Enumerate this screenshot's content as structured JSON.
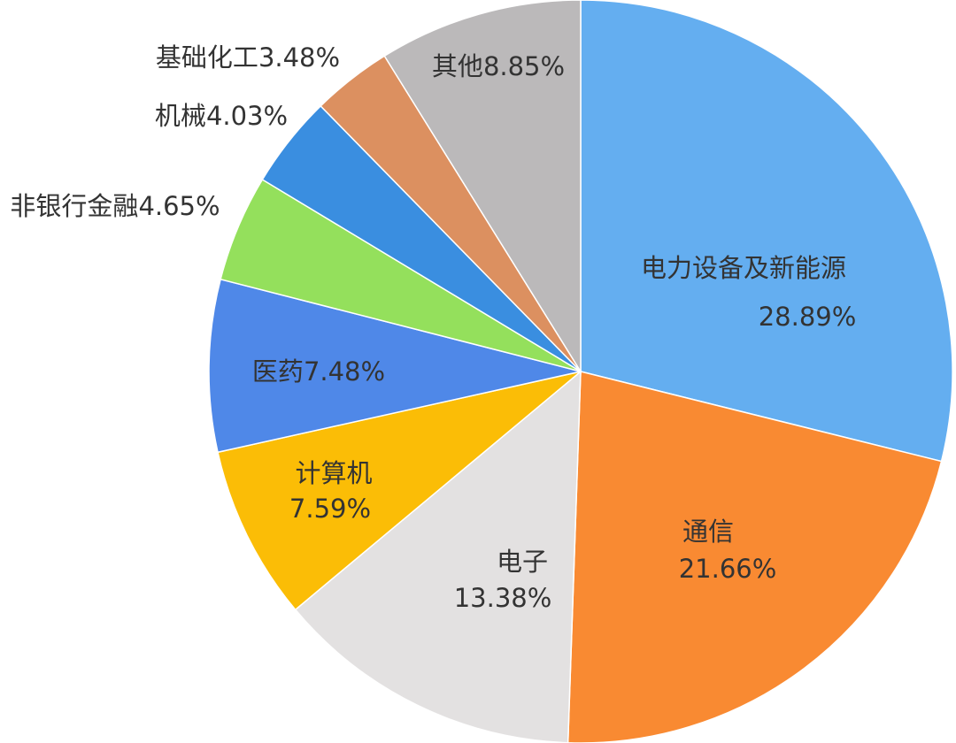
{
  "chart_data": {
    "type": "pie",
    "categories": [
      "电力设备及新能源",
      "通信",
      "电子",
      "计算机",
      "医药",
      "非银行金融",
      "机械",
      "基础化工",
      "其他"
    ],
    "values": [
      28.89,
      21.66,
      13.38,
      7.59,
      7.48,
      4.65,
      4.03,
      3.48,
      8.85
    ],
    "value_labels": [
      "28.89%",
      "21.66%",
      "13.38%",
      "7.59%",
      "7.48%",
      "4.65%",
      "4.03%",
      "3.48%",
      "8.85%"
    ],
    "colors": [
      "#64aef0",
      "#f98a32",
      "#e3e1e1",
      "#fbbd06",
      "#4f88e8",
      "#94e05c",
      "#3a8ee0",
      "#dc9060",
      "#bbb9ba"
    ]
  }
}
